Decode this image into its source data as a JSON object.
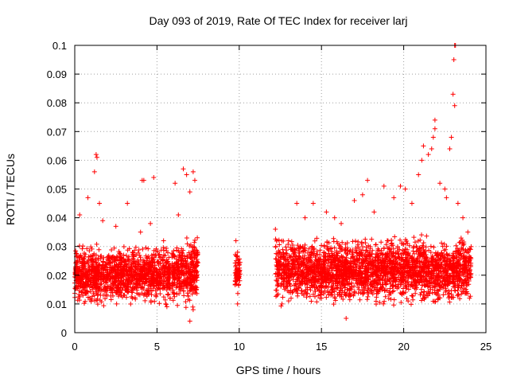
{
  "chart_data": {
    "type": "scatter",
    "title": "Day 093 of 2019, Rate Of TEC Index for receiver larj",
    "xlabel": "GPS time / hours",
    "ylabel": "ROTI / TECUs",
    "xlim": [
      0,
      25
    ],
    "ylim": [
      0,
      0.1
    ],
    "xticks": [
      0,
      5,
      10,
      15,
      20,
      25
    ],
    "yticks": [
      0,
      0.01,
      0.02,
      0.03,
      0.04,
      0.05,
      0.06,
      0.07,
      0.08,
      0.09,
      0.1
    ],
    "xtick_labels": [
      "0",
      "5",
      "10",
      "15",
      "20",
      "25"
    ],
    "ytick_labels": [
      "0",
      "0.01",
      "0.02",
      "0.03",
      "0.04",
      "0.05",
      "0.06",
      "0.07",
      "0.08",
      "0.09",
      "0.1"
    ],
    "grid": true,
    "marker": "+",
    "color": "#ff0000",
    "series": [
      {
        "name": "ROTI",
        "points": [
          [
            0.1,
            0.018
          ],
          [
            0.3,
            0.041
          ],
          [
            0.5,
            0.013
          ],
          [
            0.8,
            0.047
          ],
          [
            1.0,
            0.022
          ],
          [
            1.2,
            0.056
          ],
          [
            1.3,
            0.062
          ],
          [
            1.35,
            0.061
          ],
          [
            1.5,
            0.045
          ],
          [
            1.7,
            0.039
          ],
          [
            2.0,
            0.021
          ],
          [
            2.5,
            0.037
          ],
          [
            3.0,
            0.025
          ],
          [
            3.2,
            0.045
          ],
          [
            3.5,
            0.012
          ],
          [
            4.0,
            0.035
          ],
          [
            4.1,
            0.053
          ],
          [
            4.2,
            0.053
          ],
          [
            4.6,
            0.038
          ],
          [
            4.8,
            0.054
          ],
          [
            5.0,
            0.02
          ],
          [
            5.4,
            0.032
          ],
          [
            5.8,
            0.012
          ],
          [
            6.1,
            0.052
          ],
          [
            6.3,
            0.041
          ],
          [
            6.6,
            0.057
          ],
          [
            6.8,
            0.055
          ],
          [
            7.0,
            0.049
          ],
          [
            7.2,
            0.056
          ],
          [
            7.3,
            0.053
          ],
          [
            7.0,
            0.004
          ],
          [
            7.2,
            0.008
          ],
          [
            7.4,
            0.02
          ],
          [
            9.8,
            0.032
          ],
          [
            9.9,
            0.028
          ],
          [
            9.8,
            0.018
          ],
          [
            9.9,
            0.01
          ],
          [
            10.0,
            0.02
          ],
          [
            12.2,
            0.036
          ],
          [
            12.3,
            0.013
          ],
          [
            12.6,
            0.01
          ],
          [
            13.0,
            0.032
          ],
          [
            13.5,
            0.045
          ],
          [
            14.0,
            0.04
          ],
          [
            14.5,
            0.045
          ],
          [
            15.0,
            0.012
          ],
          [
            15.3,
            0.042
          ],
          [
            15.8,
            0.04
          ],
          [
            16.2,
            0.038
          ],
          [
            16.5,
            0.005
          ],
          [
            17.0,
            0.046
          ],
          [
            17.5,
            0.048
          ],
          [
            17.8,
            0.053
          ],
          [
            18.2,
            0.042
          ],
          [
            18.8,
            0.051
          ],
          [
            19.4,
            0.047
          ],
          [
            19.8,
            0.051
          ],
          [
            20.1,
            0.05
          ],
          [
            20.5,
            0.045
          ],
          [
            20.9,
            0.055
          ],
          [
            21.1,
            0.06
          ],
          [
            21.2,
            0.065
          ],
          [
            21.5,
            0.062
          ],
          [
            21.7,
            0.064
          ],
          [
            21.8,
            0.068
          ],
          [
            21.9,
            0.071
          ],
          [
            21.9,
            0.074
          ],
          [
            22.2,
            0.052
          ],
          [
            22.5,
            0.05
          ],
          [
            22.6,
            0.047
          ],
          [
            22.8,
            0.064
          ],
          [
            22.9,
            0.068
          ],
          [
            23.0,
            0.083
          ],
          [
            23.1,
            0.079
          ],
          [
            23.05,
            0.095
          ],
          [
            23.1,
            0.1
          ],
          [
            23.15,
            0.1
          ],
          [
            23.3,
            0.045
          ],
          [
            23.6,
            0.04
          ],
          [
            23.9,
            0.035
          ],
          [
            24.0,
            0.012
          ]
        ]
      }
    ],
    "density_bands": [
      {
        "x_start": 0.0,
        "x_end": 5.8,
        "y_low": 0.008,
        "y_high": 0.032
      },
      {
        "x_start": 5.9,
        "x_end": 7.5,
        "y_low": 0.007,
        "y_high": 0.036
      },
      {
        "x_start": 9.75,
        "x_end": 10.05,
        "y_low": 0.012,
        "y_high": 0.03
      },
      {
        "x_start": 12.2,
        "x_end": 24.1,
        "y_low": 0.008,
        "y_high": 0.035
      }
    ]
  }
}
